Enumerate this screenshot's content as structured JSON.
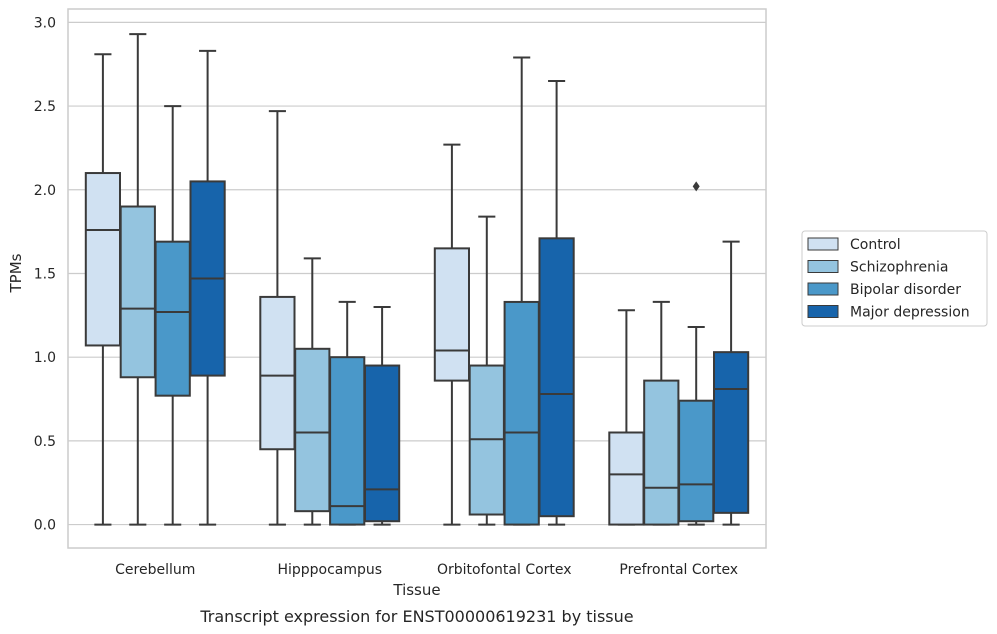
{
  "chart_data": {
    "type": "boxplot",
    "caption": "Transcript expression for ENST00000619231 by tissue",
    "xlabel": "Tissue",
    "ylabel": "TPMs",
    "ylim": [
      -0.14,
      3.08
    ],
    "yticks": [
      0.0,
      0.5,
      1.0,
      1.5,
      2.0,
      2.5,
      3.0
    ],
    "grid": true,
    "legend_position": "right",
    "categories": [
      "Cerebellum",
      "Hipppocampus",
      "Orbitofontal Cortex",
      "Prefrontal Cortex"
    ],
    "series": [
      {
        "name": "Control",
        "color": "#d0e1f2",
        "boxes": [
          {
            "min": 0.0,
            "q1": 1.07,
            "median": 1.76,
            "q3": 2.1,
            "max": 2.81,
            "outliers": []
          },
          {
            "min": 0.0,
            "q1": 0.45,
            "median": 0.89,
            "q3": 1.36,
            "max": 2.47,
            "outliers": []
          },
          {
            "min": 0.0,
            "q1": 0.86,
            "median": 1.04,
            "q3": 1.65,
            "max": 2.27,
            "outliers": []
          },
          {
            "min": 0.0,
            "q1": 0.0,
            "median": 0.3,
            "q3": 0.55,
            "max": 1.28,
            "outliers": []
          }
        ]
      },
      {
        "name": "Schizophrenia",
        "color": "#94c4df",
        "boxes": [
          {
            "min": 0.0,
            "q1": 0.88,
            "median": 1.29,
            "q3": 1.9,
            "max": 2.93,
            "outliers": []
          },
          {
            "min": 0.0,
            "q1": 0.08,
            "median": 0.55,
            "q3": 1.05,
            "max": 1.59,
            "outliers": []
          },
          {
            "min": 0.0,
            "q1": 0.06,
            "median": 0.51,
            "q3": 0.95,
            "max": 1.84,
            "outliers": []
          },
          {
            "min": 0.0,
            "q1": 0.0,
            "median": 0.22,
            "q3": 0.86,
            "max": 1.33,
            "outliers": []
          }
        ]
      },
      {
        "name": "Bipolar disorder",
        "color": "#4a98c9",
        "boxes": [
          {
            "min": 0.0,
            "q1": 0.77,
            "median": 1.27,
            "q3": 1.69,
            "max": 2.5,
            "outliers": []
          },
          {
            "min": 0.0,
            "q1": 0.0,
            "median": 0.11,
            "q3": 1.0,
            "max": 1.33,
            "outliers": []
          },
          {
            "min": 0.0,
            "q1": 0.0,
            "median": 0.55,
            "q3": 1.33,
            "max": 2.79,
            "outliers": []
          },
          {
            "min": 0.0,
            "q1": 0.02,
            "median": 0.24,
            "q3": 0.74,
            "max": 1.18,
            "outliers": [
              2.02
            ]
          }
        ]
      },
      {
        "name": "Major depression",
        "color": "#1764ab",
        "boxes": [
          {
            "min": 0.0,
            "q1": 0.89,
            "median": 1.47,
            "q3": 2.05,
            "max": 2.83,
            "outliers": []
          },
          {
            "min": 0.0,
            "q1": 0.02,
            "median": 0.21,
            "q3": 0.95,
            "max": 1.3,
            "outliers": []
          },
          {
            "min": 0.0,
            "q1": 0.05,
            "median": 0.78,
            "q3": 1.71,
            "max": 2.65,
            "outliers": []
          },
          {
            "min": 0.0,
            "q1": 0.07,
            "median": 0.81,
            "q3": 1.03,
            "max": 1.69,
            "outliers": []
          }
        ]
      }
    ]
  }
}
